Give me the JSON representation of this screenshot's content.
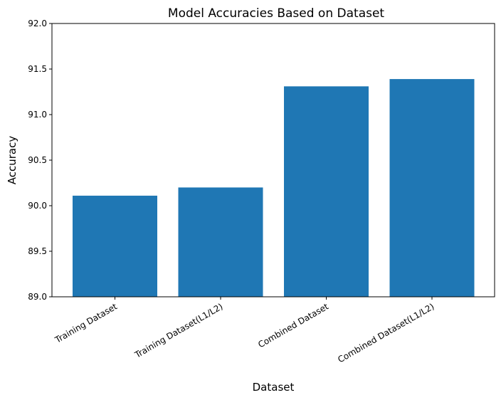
{
  "chart_data": {
    "type": "bar",
    "title": "Model Accuracies Based on Dataset",
    "xlabel": "Dataset",
    "ylabel": "Accuracy",
    "categories": [
      "Training Dataset",
      "Training Dataset(L1/L2)",
      "Combined Dataset",
      "Combined Dataset(L1/L2)"
    ],
    "values": [
      90.11,
      90.2,
      91.31,
      91.39
    ],
    "ylim": [
      89.0,
      92.0
    ],
    "yticks": [
      "89.0",
      "89.5",
      "90.0",
      "90.5",
      "91.0",
      "91.5",
      "92.0"
    ],
    "bar_color": "#1f77b4",
    "grid": false,
    "x_tick_rotation_deg": 30
  }
}
